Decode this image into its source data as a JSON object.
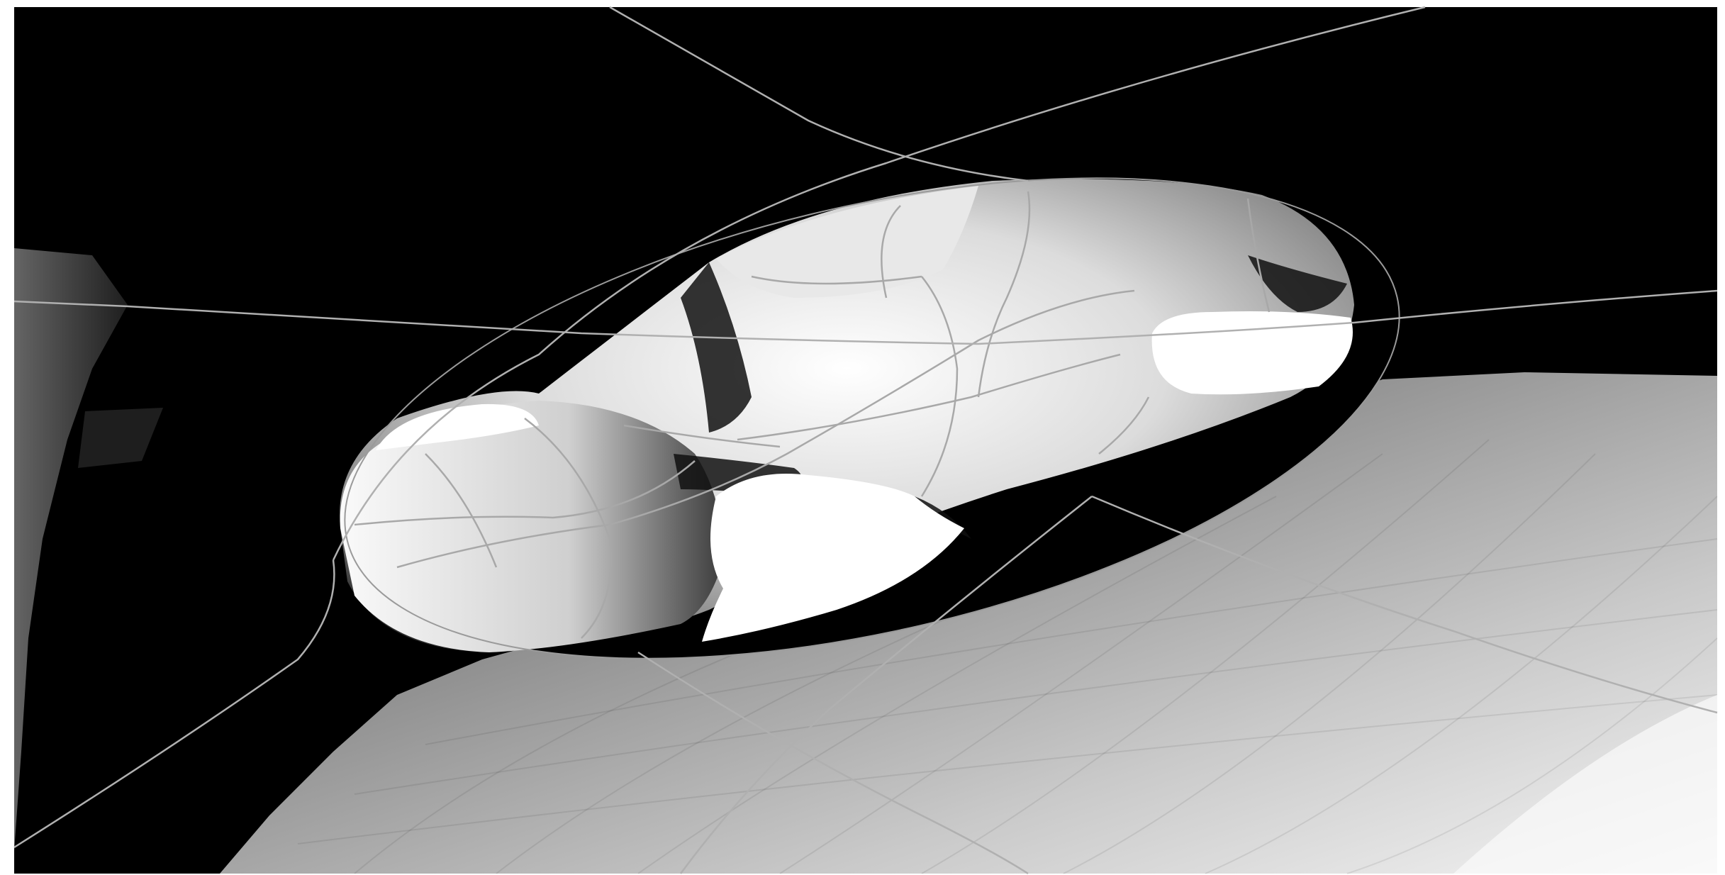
{
  "scene": {
    "description_visible_text": "",
    "colors": {
      "background": "#ffffff",
      "void": "#000000",
      "surface_light": "#f2f2f2",
      "surface_mid": "#bdbdbd",
      "surface_dark": "#4a4a4a",
      "curve_line": "#b8b8b8"
    }
  }
}
